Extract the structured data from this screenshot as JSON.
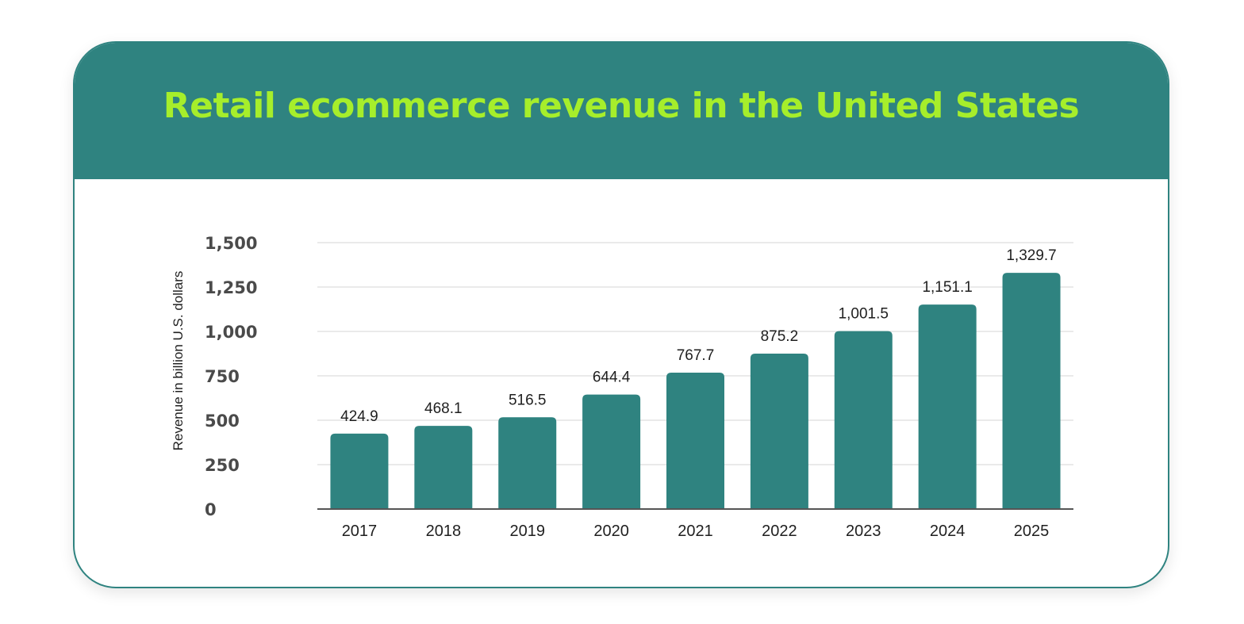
{
  "colors": {
    "accent": "#2f8380",
    "title": "#a6ee2b",
    "grid": "#e3e3e3",
    "axis": "#555555"
  },
  "chart_data": {
    "type": "bar",
    "title": "Retail ecommerce revenue in the United States",
    "xlabel": "",
    "ylabel": "Revenue in billion U.S. dollars",
    "ylim": [
      0,
      1500
    ],
    "yticks": [
      0,
      250,
      500,
      750,
      1000,
      1250,
      1500
    ],
    "ytick_labels": [
      "0",
      "250",
      "500",
      "750",
      "1,000",
      "1,250",
      "1,500"
    ],
    "grid": true,
    "categories": [
      "2017",
      "2018",
      "2019",
      "2020",
      "2021",
      "2022",
      "2023",
      "2024",
      "2025"
    ],
    "values": [
      424.9,
      468.1,
      516.5,
      644.4,
      767.7,
      875.2,
      1001.5,
      1151.1,
      1329.7
    ],
    "value_labels": [
      "424.9",
      "468.1",
      "516.5",
      "644.4",
      "767.7",
      "875.2",
      "1,001.5",
      "1,151.1",
      "1,329.7"
    ]
  }
}
